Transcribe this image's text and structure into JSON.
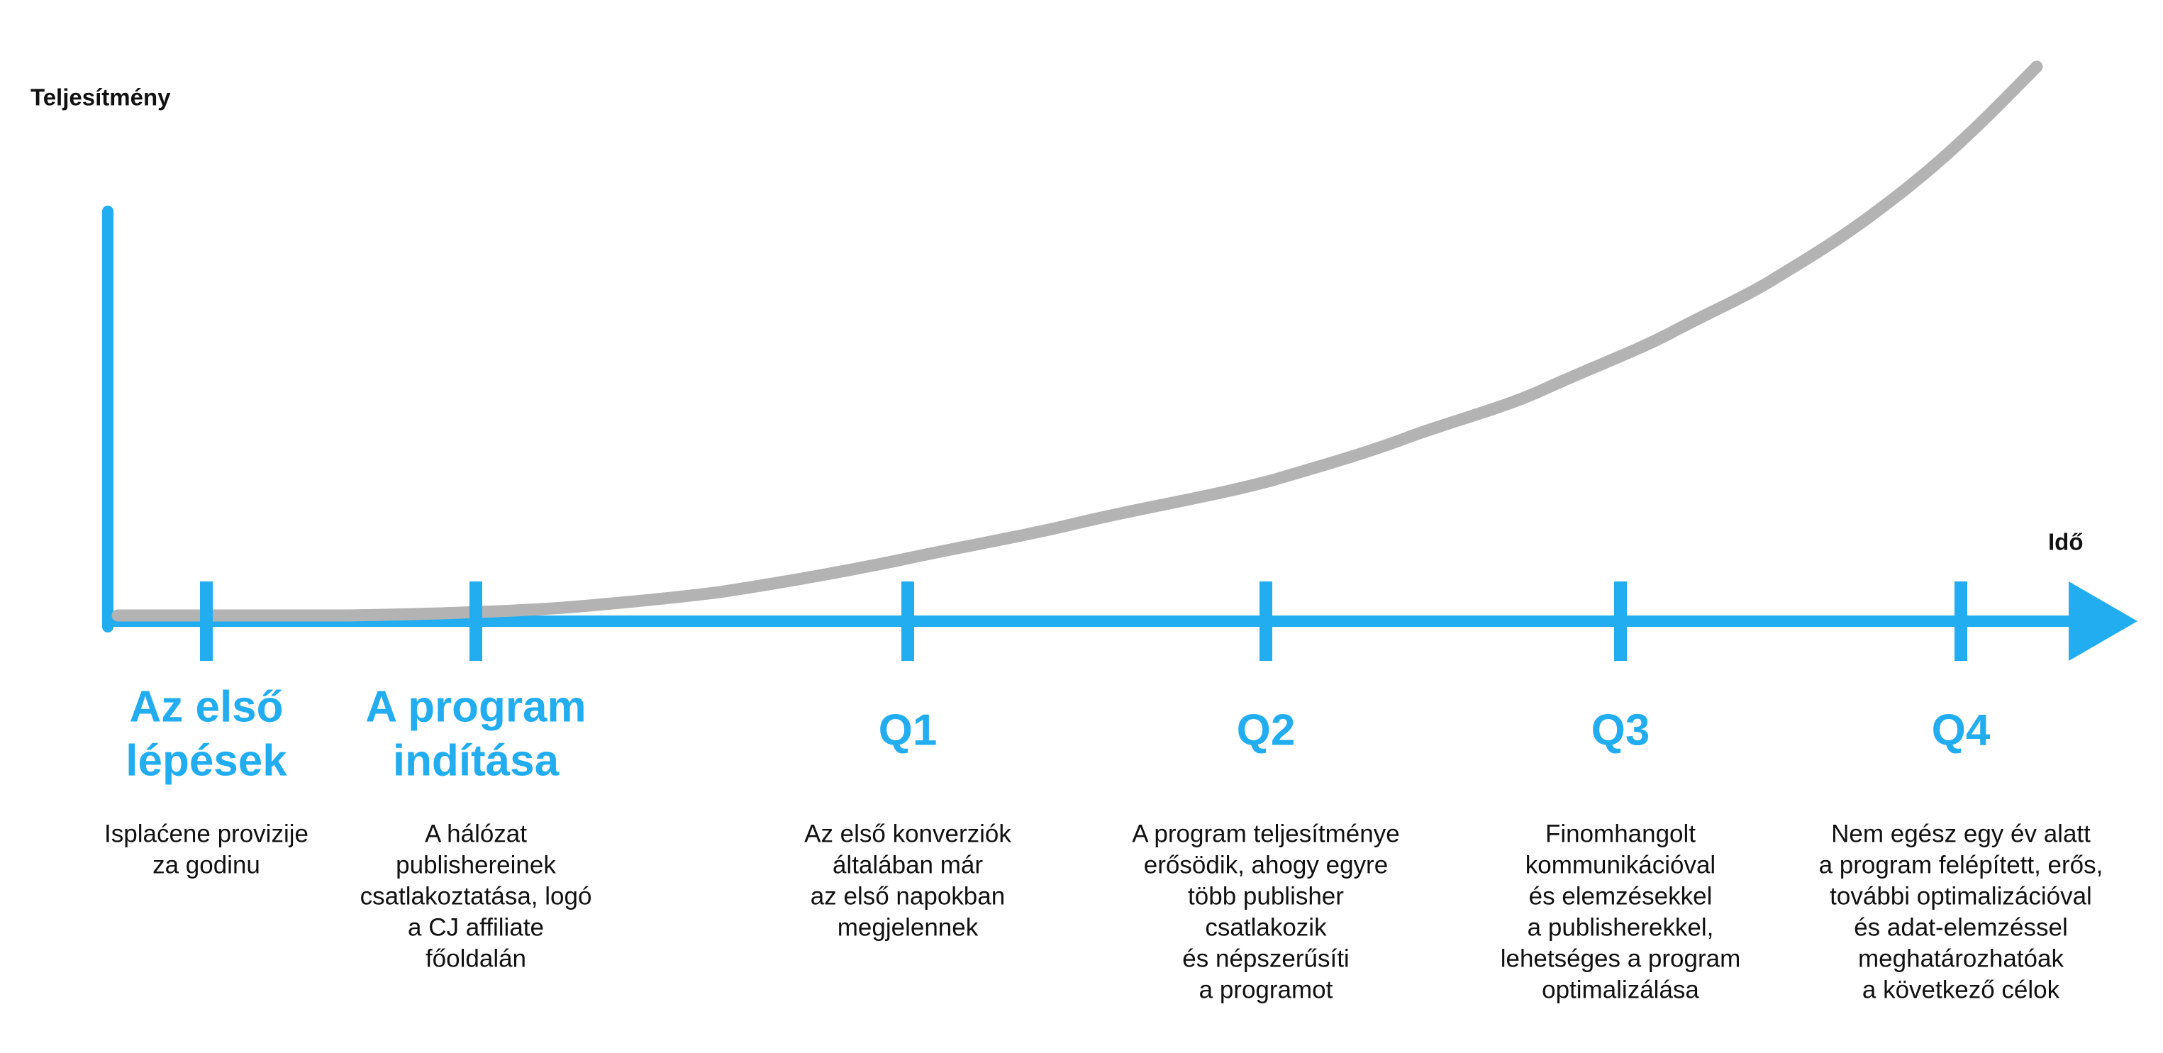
{
  "axes": {
    "y_label": "Teljesítmény",
    "x_label": "Idő"
  },
  "milestones": [
    {
      "title": [
        "Az első",
        "lépések"
      ],
      "description": [
        "Isplaćene provizije",
        "za godinu"
      ]
    },
    {
      "title": [
        "A program",
        "indítása"
      ],
      "description": [
        "A hálózat",
        "publishereinek",
        "csatlakoztatása, logó",
        "a CJ affiliate",
        "főoldalán"
      ]
    },
    {
      "title": [
        "Q1"
      ],
      "description": [
        "Az első konverziók",
        "általában már",
        "az első napokban",
        "megjelennek"
      ]
    },
    {
      "title": [
        "Q2"
      ],
      "description": [
        "A program teljesítménye",
        "erősödik, ahogy egyre",
        "több publisher",
        "csatlakozik",
        "és népszerűsíti",
        "a programot"
      ]
    },
    {
      "title": [
        "Q3"
      ],
      "description": [
        "Finomhangolt",
        "kommunikációval",
        "és elemzésekkel",
        "a publisherekkel,",
        "lehetséges a program",
        "optimalizálása"
      ]
    },
    {
      "title": [
        "Q4"
      ],
      "description": [
        "Nem egész egy év alatt",
        "a program felépített, erős,",
        "további optimalizációval",
        "és adat-elemzéssel",
        "meghatározhatóak",
        "a következő célok"
      ]
    }
  ]
}
